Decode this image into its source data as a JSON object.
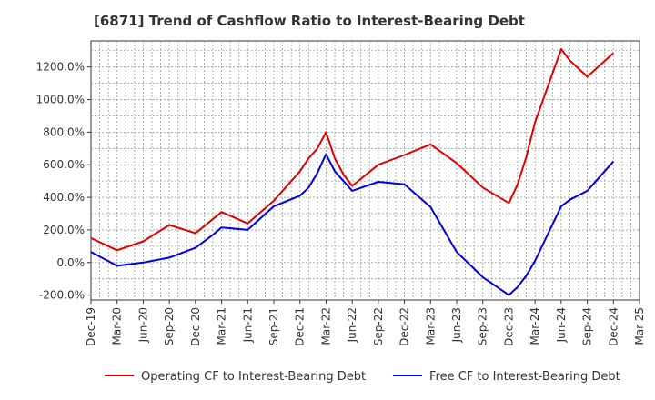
{
  "chart_data": {
    "type": "line",
    "title": "[6871]  Trend of Cashflow Ratio to Interest-Bearing Debt",
    "xlabel": "",
    "ylabel": "",
    "x_tick_labels": [
      "Dec-19",
      "Mar-20",
      "Jun-20",
      "Sep-20",
      "Dec-20",
      "Mar-21",
      "Jun-21",
      "Sep-21",
      "Dec-21",
      "Mar-22",
      "Jun-22",
      "Sep-22",
      "Dec-22",
      "Mar-23",
      "Jun-23",
      "Sep-23",
      "Dec-23",
      "Mar-24",
      "Jun-24",
      "Sep-24",
      "Dec-24",
      "Mar-25"
    ],
    "y_tick_labels": [
      "-200.0%",
      "0.0%",
      "200.0%",
      "400.0%",
      "600.0%",
      "800.0%",
      "1000.0%",
      "1200.0%"
    ],
    "y_ticks": [
      -200,
      0,
      200,
      400,
      600,
      800,
      1000,
      1200
    ],
    "ylim": [
      -230,
      1360
    ],
    "grid": true,
    "legend_position": "bottom",
    "series": [
      {
        "name": "Operating CF to Interest-Bearing Debt",
        "color": "#e00000",
        "points": [
          [
            "Dec-19",
            150
          ],
          [
            "Mar-20",
            75
          ],
          [
            "Jun-20",
            130
          ],
          [
            "Sep-20",
            230
          ],
          [
            "Dec-20",
            180
          ],
          [
            "Mar-21",
            310
          ],
          [
            "Jun-21",
            240
          ],
          [
            "Sep-21",
            380
          ],
          [
            "Dec-21",
            560
          ],
          [
            "Jan-22",
            640
          ],
          [
            "Feb-22",
            700
          ],
          [
            "Mar-22",
            800
          ],
          [
            "Apr-22",
            640
          ],
          [
            "May-22",
            540
          ],
          [
            "Jun-22",
            470
          ],
          [
            "Sep-22",
            600
          ],
          [
            "Dec-22",
            660
          ],
          [
            "Mar-23",
            725
          ],
          [
            "Jun-23",
            610
          ],
          [
            "Sep-23",
            460
          ],
          [
            "Dec-23",
            365
          ],
          [
            "Jan-24",
            480
          ],
          [
            "Feb-24",
            650
          ],
          [
            "Mar-24",
            860
          ],
          [
            "Jun-24",
            1310
          ],
          [
            "Jul-24",
            1240
          ],
          [
            "Sep-24",
            1140
          ],
          [
            "Dec-24",
            1285
          ]
        ]
      },
      {
        "name": "Free CF to Interest-Bearing Debt",
        "color": "#0000e0",
        "points": [
          [
            "Dec-19",
            65
          ],
          [
            "Mar-20",
            -20
          ],
          [
            "Jun-20",
            0
          ],
          [
            "Sep-20",
            30
          ],
          [
            "Dec-20",
            90
          ],
          [
            "Feb-21",
            170
          ],
          [
            "Mar-21",
            215
          ],
          [
            "Jun-21",
            200
          ],
          [
            "Sep-21",
            345
          ],
          [
            "Dec-21",
            410
          ],
          [
            "Jan-22",
            460
          ],
          [
            "Feb-22",
            550
          ],
          [
            "Mar-22",
            665
          ],
          [
            "Apr-22",
            560
          ],
          [
            "Jun-22",
            440
          ],
          [
            "Sep-22",
            495
          ],
          [
            "Dec-22",
            480
          ],
          [
            "Mar-23",
            340
          ],
          [
            "Jun-23",
            65
          ],
          [
            "Sep-23",
            -90
          ],
          [
            "Dec-23",
            -200
          ],
          [
            "Jan-24",
            -150
          ],
          [
            "Feb-24",
            -80
          ],
          [
            "Mar-24",
            10
          ],
          [
            "Jun-24",
            345
          ],
          [
            "Jul-24",
            385
          ],
          [
            "Sep-24",
            440
          ],
          [
            "Dec-24",
            620
          ]
        ]
      }
    ]
  }
}
